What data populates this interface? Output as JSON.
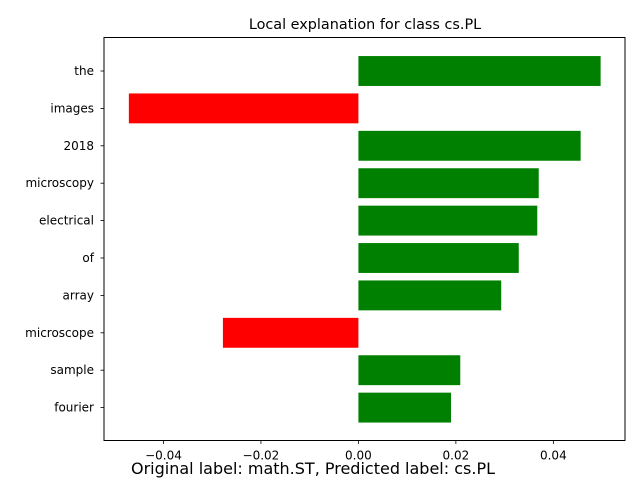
{
  "chart_data": {
    "type": "bar",
    "orientation": "horizontal",
    "title": "Local explanation for class cs.PL",
    "categories": [
      "the",
      "images",
      "2018",
      "microscopy",
      "electrical",
      "of",
      "array",
      "microscope",
      "sample",
      "fourier"
    ],
    "values": [
      0.0497,
      -0.0471,
      0.0456,
      0.037,
      0.0367,
      0.0329,
      0.0293,
      -0.0278,
      0.0209,
      0.019
    ],
    "xlim": [
      -0.0522,
      0.0547
    ],
    "xticks": [
      -0.04,
      -0.02,
      0.0,
      0.02,
      0.04
    ],
    "xtick_labels": [
      "−0.04",
      "−0.02",
      "0.00",
      "0.02",
      "0.04"
    ],
    "xlabel": "",
    "ylabel": "",
    "grid": false,
    "colors": {
      "positive": "#008000",
      "negative": "#ff0000"
    }
  },
  "caption": "Original label: math.ST, Predicted label: cs.PL"
}
